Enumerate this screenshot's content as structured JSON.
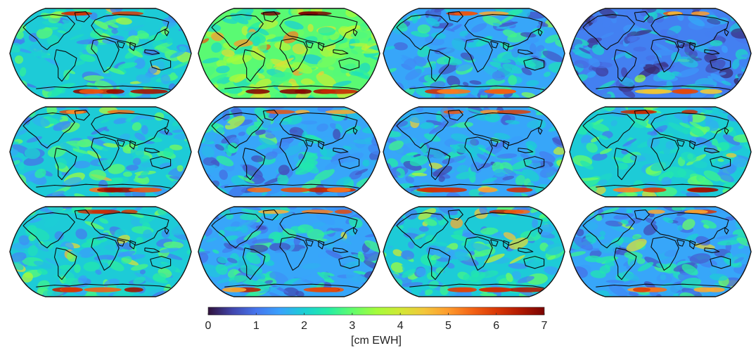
{
  "figure": {
    "grid": {
      "rows": 3,
      "cols": 4
    },
    "projection": "elliptical equal-area world map",
    "panels": [
      {
        "row": 1,
        "col": 1,
        "intensity": "moderate"
      },
      {
        "row": 1,
        "col": 2,
        "intensity": "high"
      },
      {
        "row": 1,
        "col": 3,
        "intensity": "low"
      },
      {
        "row": 1,
        "col": 4,
        "intensity": "very low"
      },
      {
        "row": 2,
        "col": 1,
        "intensity": "moderate"
      },
      {
        "row": 2,
        "col": 2,
        "intensity": "low"
      },
      {
        "row": 2,
        "col": 3,
        "intensity": "low"
      },
      {
        "row": 2,
        "col": 4,
        "intensity": "moderate"
      },
      {
        "row": 3,
        "col": 1,
        "intensity": "moderate"
      },
      {
        "row": 3,
        "col": 2,
        "intensity": "low"
      },
      {
        "row": 3,
        "col": 3,
        "intensity": "moderate"
      },
      {
        "row": 3,
        "col": 4,
        "intensity": "low"
      }
    ]
  },
  "colorbar": {
    "colormap": "turbo",
    "min": 0,
    "max": 7,
    "ticks": [
      "0",
      "1",
      "2",
      "3",
      "4",
      "5",
      "6",
      "7"
    ],
    "unit_label": "[cm EWH]",
    "stops": [
      "#30123b",
      "#4145ab",
      "#4675ed",
      "#39a2fc",
      "#1bcfd4",
      "#24eca6",
      "#61fc6c",
      "#a4fc3b",
      "#d1e834",
      "#f3c63a",
      "#fe9b2d",
      "#f36315",
      "#d93806",
      "#b11901",
      "#7a0402"
    ]
  },
  "colors": {
    "coastline": "#0b0b0b",
    "outline": "#111111",
    "background": "#ffffff"
  }
}
